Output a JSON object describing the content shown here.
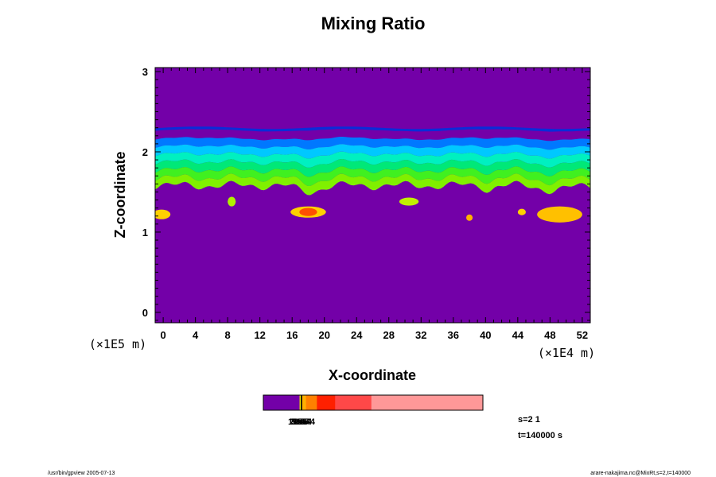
{
  "chart_data": {
    "type": "heatmap",
    "title": "Mixing Ratio",
    "xlabel": "X-coordinate",
    "ylabel": "Z-coordinate",
    "x_ticks": [
      "0",
      "4",
      "8",
      "12",
      "16",
      "20",
      "24",
      "28",
      "32",
      "36",
      "40",
      "44",
      "48",
      "52"
    ],
    "y_ticks": [
      "0",
      "1",
      "2",
      "3"
    ],
    "xlim": [
      -1,
      53
    ],
    "ylim": [
      -0.13,
      3.05
    ],
    "x_unit": "(×1E4 m)",
    "y_unit": "(×1E5 m)",
    "background_color": "#7300a8",
    "layer": {
      "z_top": 2.3,
      "z_bottom_mean": 1.58,
      "colors_top_to_bottom": [
        "#0a2cd8",
        "#0078ff",
        "#00c8ff",
        "#00f0c0",
        "#00e878",
        "#40f020",
        "#80f000"
      ]
    },
    "plumes": [
      {
        "x": 8.5,
        "z": 1.38,
        "rx": 0.5,
        "rz": 0.06,
        "color": "#b0f000"
      },
      {
        "x": 18.0,
        "z": 1.25,
        "rx": 2.2,
        "rz": 0.07,
        "color": "#ffd000"
      },
      {
        "x": 18.0,
        "z": 1.25,
        "rx": 1.1,
        "rz": 0.05,
        "color": "#ff5000"
      },
      {
        "x": 30.5,
        "z": 1.38,
        "rx": 1.2,
        "rz": 0.05,
        "color": "#c0f000"
      },
      {
        "x": 38.0,
        "z": 1.18,
        "rx": 0.4,
        "rz": 0.04,
        "color": "#ffb000"
      },
      {
        "x": 44.5,
        "z": 1.25,
        "rx": 0.5,
        "rz": 0.04,
        "color": "#ffd000"
      },
      {
        "x": 49.2,
        "z": 1.22,
        "rx": 2.8,
        "rz": 0.1,
        "color": "#ffc000"
      },
      {
        "x": -0.2,
        "z": 1.22,
        "rx": 1.1,
        "rz": 0.06,
        "color": "#ffd000"
      }
    ],
    "colorbar": {
      "segments": [
        {
          "fraction": 0.165,
          "color": "#7300a8"
        },
        {
          "fraction": 0.006,
          "color": "#e8e000"
        },
        {
          "fraction": 0.006,
          "color": "#000000"
        },
        {
          "fraction": 0.017,
          "color": "#ffb000"
        },
        {
          "fraction": 0.05,
          "color": "#ff8000"
        },
        {
          "fraction": 0.083,
          "color": "#ff2000"
        },
        {
          "fraction": 0.165,
          "color": "#ff4848"
        },
        {
          "fraction": 0.508,
          "color": "#ff9898"
        }
      ],
      "overlapping_labels": [
        "1e-5",
        "2e-5",
        "5e-5",
        "1e-4",
        "2e-4",
        "5e-4"
      ]
    }
  },
  "annotations": {
    "slice_info": "s=2 1",
    "time_info": "t=140000 s",
    "footer_left": "/usr/bin/gpview 2005-07-13",
    "footer_right": "arare-nakajima.nc@MixRt,s=2,t=140000"
  }
}
